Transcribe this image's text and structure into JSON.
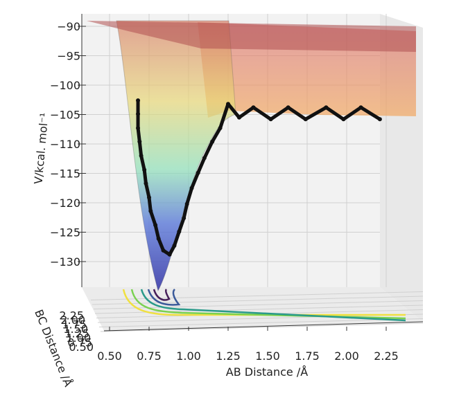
{
  "chart_data": {
    "type": "surface3d",
    "xlabel": "AB Distance /Å",
    "ylabel": "BC Distance /Å",
    "zlabel": "V/kcal. mol⁻¹",
    "xlim": [
      0.5,
      2.5
    ],
    "xticks": [
      {
        "value": 0.5,
        "label": "0.50"
      },
      {
        "value": 0.75,
        "label": "0.75"
      },
      {
        "value": 1.0,
        "label": "1.00"
      },
      {
        "value": 1.25,
        "label": "1.25"
      },
      {
        "value": 1.5,
        "label": "1.50"
      },
      {
        "value": 1.75,
        "label": "1.75"
      },
      {
        "value": 2.0,
        "label": "2.00"
      },
      {
        "value": 2.25,
        "label": "2.25"
      }
    ],
    "ylim": [
      0.5,
      2.5
    ],
    "yticks": [
      {
        "value": 0.5,
        "label": "0.50"
      },
      {
        "value": 0.75,
        "label": "0.75"
      },
      {
        "value": 1.0,
        "label": "1.00"
      },
      {
        "value": 1.25,
        "label": "1.25"
      },
      {
        "value": 1.5,
        "label": "1.50"
      },
      {
        "value": 1.75,
        "label": "1.75"
      },
      {
        "value": 2.0,
        "label": "2.00"
      },
      {
        "value": 2.25,
        "label": "2.25"
      }
    ],
    "zlim": [
      -134,
      -88
    ],
    "zticks": [
      {
        "value": -90,
        "label": "−90"
      },
      {
        "value": -95,
        "label": "−95"
      },
      {
        "value": -100,
        "label": "−100"
      },
      {
        "value": -105,
        "label": "−105"
      },
      {
        "value": -110,
        "label": "−110"
      },
      {
        "value": -115,
        "label": "−115"
      },
      {
        "value": -120,
        "label": "−120"
      },
      {
        "value": -125,
        "label": "−125"
      },
      {
        "value": -130,
        "label": "−130"
      }
    ],
    "grid": true,
    "trajectory": {
      "color": "#111111",
      "x": [
        0.68,
        0.68,
        0.68,
        0.69,
        0.7,
        0.72,
        0.73,
        0.75,
        0.76,
        0.79,
        0.81,
        0.84,
        0.88,
        0.91,
        0.94,
        0.97,
        0.99,
        1.02,
        1.06,
        1.1,
        1.15,
        1.2,
        1.25,
        1.32,
        1.41,
        1.52,
        1.63,
        1.74,
        1.87,
        1.98,
        2.09,
        2.21
      ],
      "values": [
        -102.6,
        -104.9,
        -107.3,
        -109.6,
        -112.0,
        -114.4,
        -116.7,
        -119.1,
        -121.4,
        -123.8,
        -126.1,
        -128.1,
        -128.8,
        -127.3,
        -124.9,
        -122.6,
        -120.2,
        -117.5,
        -114.9,
        -112.4,
        -109.6,
        -107.3,
        -103.2,
        -105.5,
        -103.8,
        -105.8,
        -103.8,
        -105.8,
        -103.8,
        -105.8,
        -103.8,
        -105.8
      ]
    }
  }
}
